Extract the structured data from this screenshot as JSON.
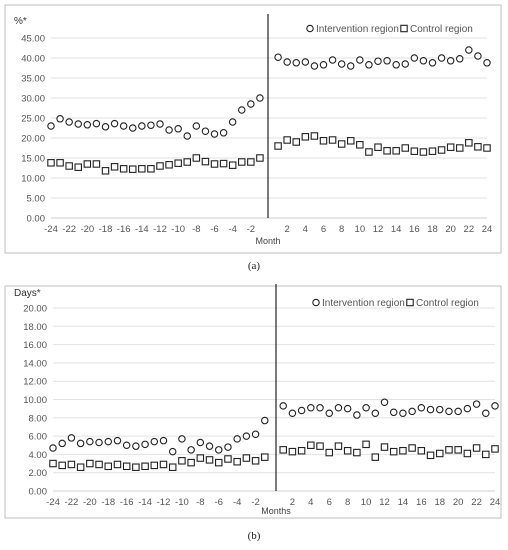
{
  "chart_data": [
    {
      "type": "scatter",
      "panel_label": "(a)",
      "ylabel": "%*",
      "xlabel": "Month",
      "ylim": [
        0,
        45
      ],
      "ytick_labels": [
        "0.00",
        "5.00",
        "10.00",
        "15.00",
        "20.00",
        "25.00",
        "30.00",
        "35.00",
        "40.00",
        "45.00"
      ],
      "xtick_labels": [
        "-24",
        "-22",
        "-20",
        "-18",
        "-16",
        "-14",
        "-12",
        "-10",
        "-8",
        "-6",
        "-4",
        "-2",
        "2",
        "4",
        "6",
        "8",
        "10",
        "12",
        "14",
        "16",
        "18",
        "20",
        "22",
        "24"
      ],
      "x": [
        -24,
        -23,
        -22,
        -21,
        -20,
        -19,
        -18,
        -17,
        -16,
        -15,
        -14,
        -13,
        -12,
        -11,
        -10,
        -9,
        -8,
        -7,
        -6,
        -5,
        -4,
        -3,
        -2,
        -1,
        1,
        2,
        3,
        4,
        5,
        6,
        7,
        8,
        9,
        10,
        11,
        12,
        13,
        14,
        15,
        16,
        17,
        18,
        19,
        20,
        21,
        22,
        23,
        24
      ],
      "legend_position": "top-right",
      "series": [
        {
          "name": "Intervention region",
          "marker": "circle",
          "values": [
            23.0,
            24.8,
            24.0,
            23.5,
            23.3,
            23.6,
            22.8,
            23.6,
            23.0,
            22.5,
            23.0,
            23.2,
            23.5,
            22.0,
            22.3,
            20.5,
            23.0,
            21.7,
            21.0,
            21.3,
            24.0,
            27.0,
            28.5,
            30.0,
            40.2,
            39.0,
            38.8,
            39.0,
            38.0,
            38.3,
            39.5,
            38.5,
            38.0,
            39.5,
            38.3,
            39.2,
            39.3,
            38.3,
            38.5,
            40.0,
            39.3,
            38.8,
            40.0,
            39.3,
            39.8,
            42.0,
            40.5,
            38.8
          ]
        },
        {
          "name": "Control region",
          "marker": "square",
          "values": [
            13.8,
            13.8,
            13.0,
            12.7,
            13.5,
            13.5,
            11.8,
            12.8,
            12.3,
            12.2,
            12.3,
            12.3,
            13.0,
            13.3,
            13.7,
            14.0,
            15.0,
            14.1,
            13.5,
            13.6,
            13.2,
            14.0,
            14.0,
            15.0,
            18.0,
            19.5,
            19.0,
            20.3,
            20.5,
            19.3,
            19.5,
            18.5,
            19.3,
            18.3,
            16.5,
            17.7,
            16.8,
            16.8,
            17.5,
            16.7,
            16.5,
            16.7,
            17.0,
            17.7,
            17.5,
            18.8,
            17.8,
            17.5
          ]
        }
      ]
    },
    {
      "type": "scatter",
      "panel_label": "(b)",
      "ylabel": "Days*",
      "xlabel": "Months",
      "ylim": [
        0,
        20
      ],
      "ytick_labels": [
        "0.00",
        "2.00",
        "4.00",
        "6.00",
        "8.00",
        "10.00",
        "12.00",
        "14.00",
        "16.00",
        "18.00",
        "20.00"
      ],
      "xtick_labels": [
        "-24",
        "-22",
        "-20",
        "-18",
        "-16",
        "-14",
        "-12",
        "-10",
        "-8",
        "-6",
        "-4",
        "-2",
        "2",
        "4",
        "6",
        "8",
        "10",
        "12",
        "14",
        "16",
        "18",
        "20",
        "22",
        "24"
      ],
      "x": [
        -24,
        -23,
        -22,
        -21,
        -20,
        -19,
        -18,
        -17,
        -16,
        -15,
        -14,
        -13,
        -12,
        -11,
        -10,
        -9,
        -8,
        -7,
        -6,
        -5,
        -4,
        -3,
        -2,
        -1,
        1,
        2,
        3,
        4,
        5,
        6,
        7,
        8,
        9,
        10,
        11,
        12,
        13,
        14,
        15,
        16,
        17,
        18,
        19,
        20,
        21,
        22,
        23,
        24
      ],
      "legend_position": "top-right",
      "series": [
        {
          "name": "Intervention region",
          "marker": "circle",
          "values": [
            4.7,
            5.2,
            5.8,
            5.2,
            5.4,
            5.3,
            5.4,
            5.5,
            5.0,
            4.9,
            5.1,
            5.4,
            5.5,
            4.3,
            5.7,
            4.5,
            5.3,
            4.9,
            4.5,
            4.8,
            5.7,
            6.0,
            6.2,
            7.7,
            9.3,
            8.5,
            8.8,
            9.1,
            9.1,
            8.5,
            9.1,
            9.0,
            8.3,
            9.1,
            8.5,
            9.7,
            8.6,
            8.5,
            8.7,
            9.1,
            8.9,
            8.9,
            8.7,
            8.7,
            9.0,
            9.5,
            8.5,
            9.3
          ]
        },
        {
          "name": "Control region",
          "marker": "square",
          "values": [
            3.0,
            2.8,
            2.9,
            2.6,
            3.0,
            2.9,
            2.7,
            2.9,
            2.7,
            2.6,
            2.7,
            2.8,
            2.9,
            2.6,
            3.3,
            3.1,
            3.6,
            3.4,
            3.1,
            3.5,
            3.2,
            3.6,
            3.3,
            3.7,
            4.5,
            4.3,
            4.4,
            5.0,
            4.9,
            4.2,
            4.9,
            4.4,
            4.2,
            5.1,
            3.7,
            4.8,
            4.3,
            4.4,
            4.7,
            4.4,
            3.9,
            4.1,
            4.5,
            4.5,
            4.1,
            4.7,
            4.0,
            4.6
          ]
        }
      ]
    }
  ]
}
